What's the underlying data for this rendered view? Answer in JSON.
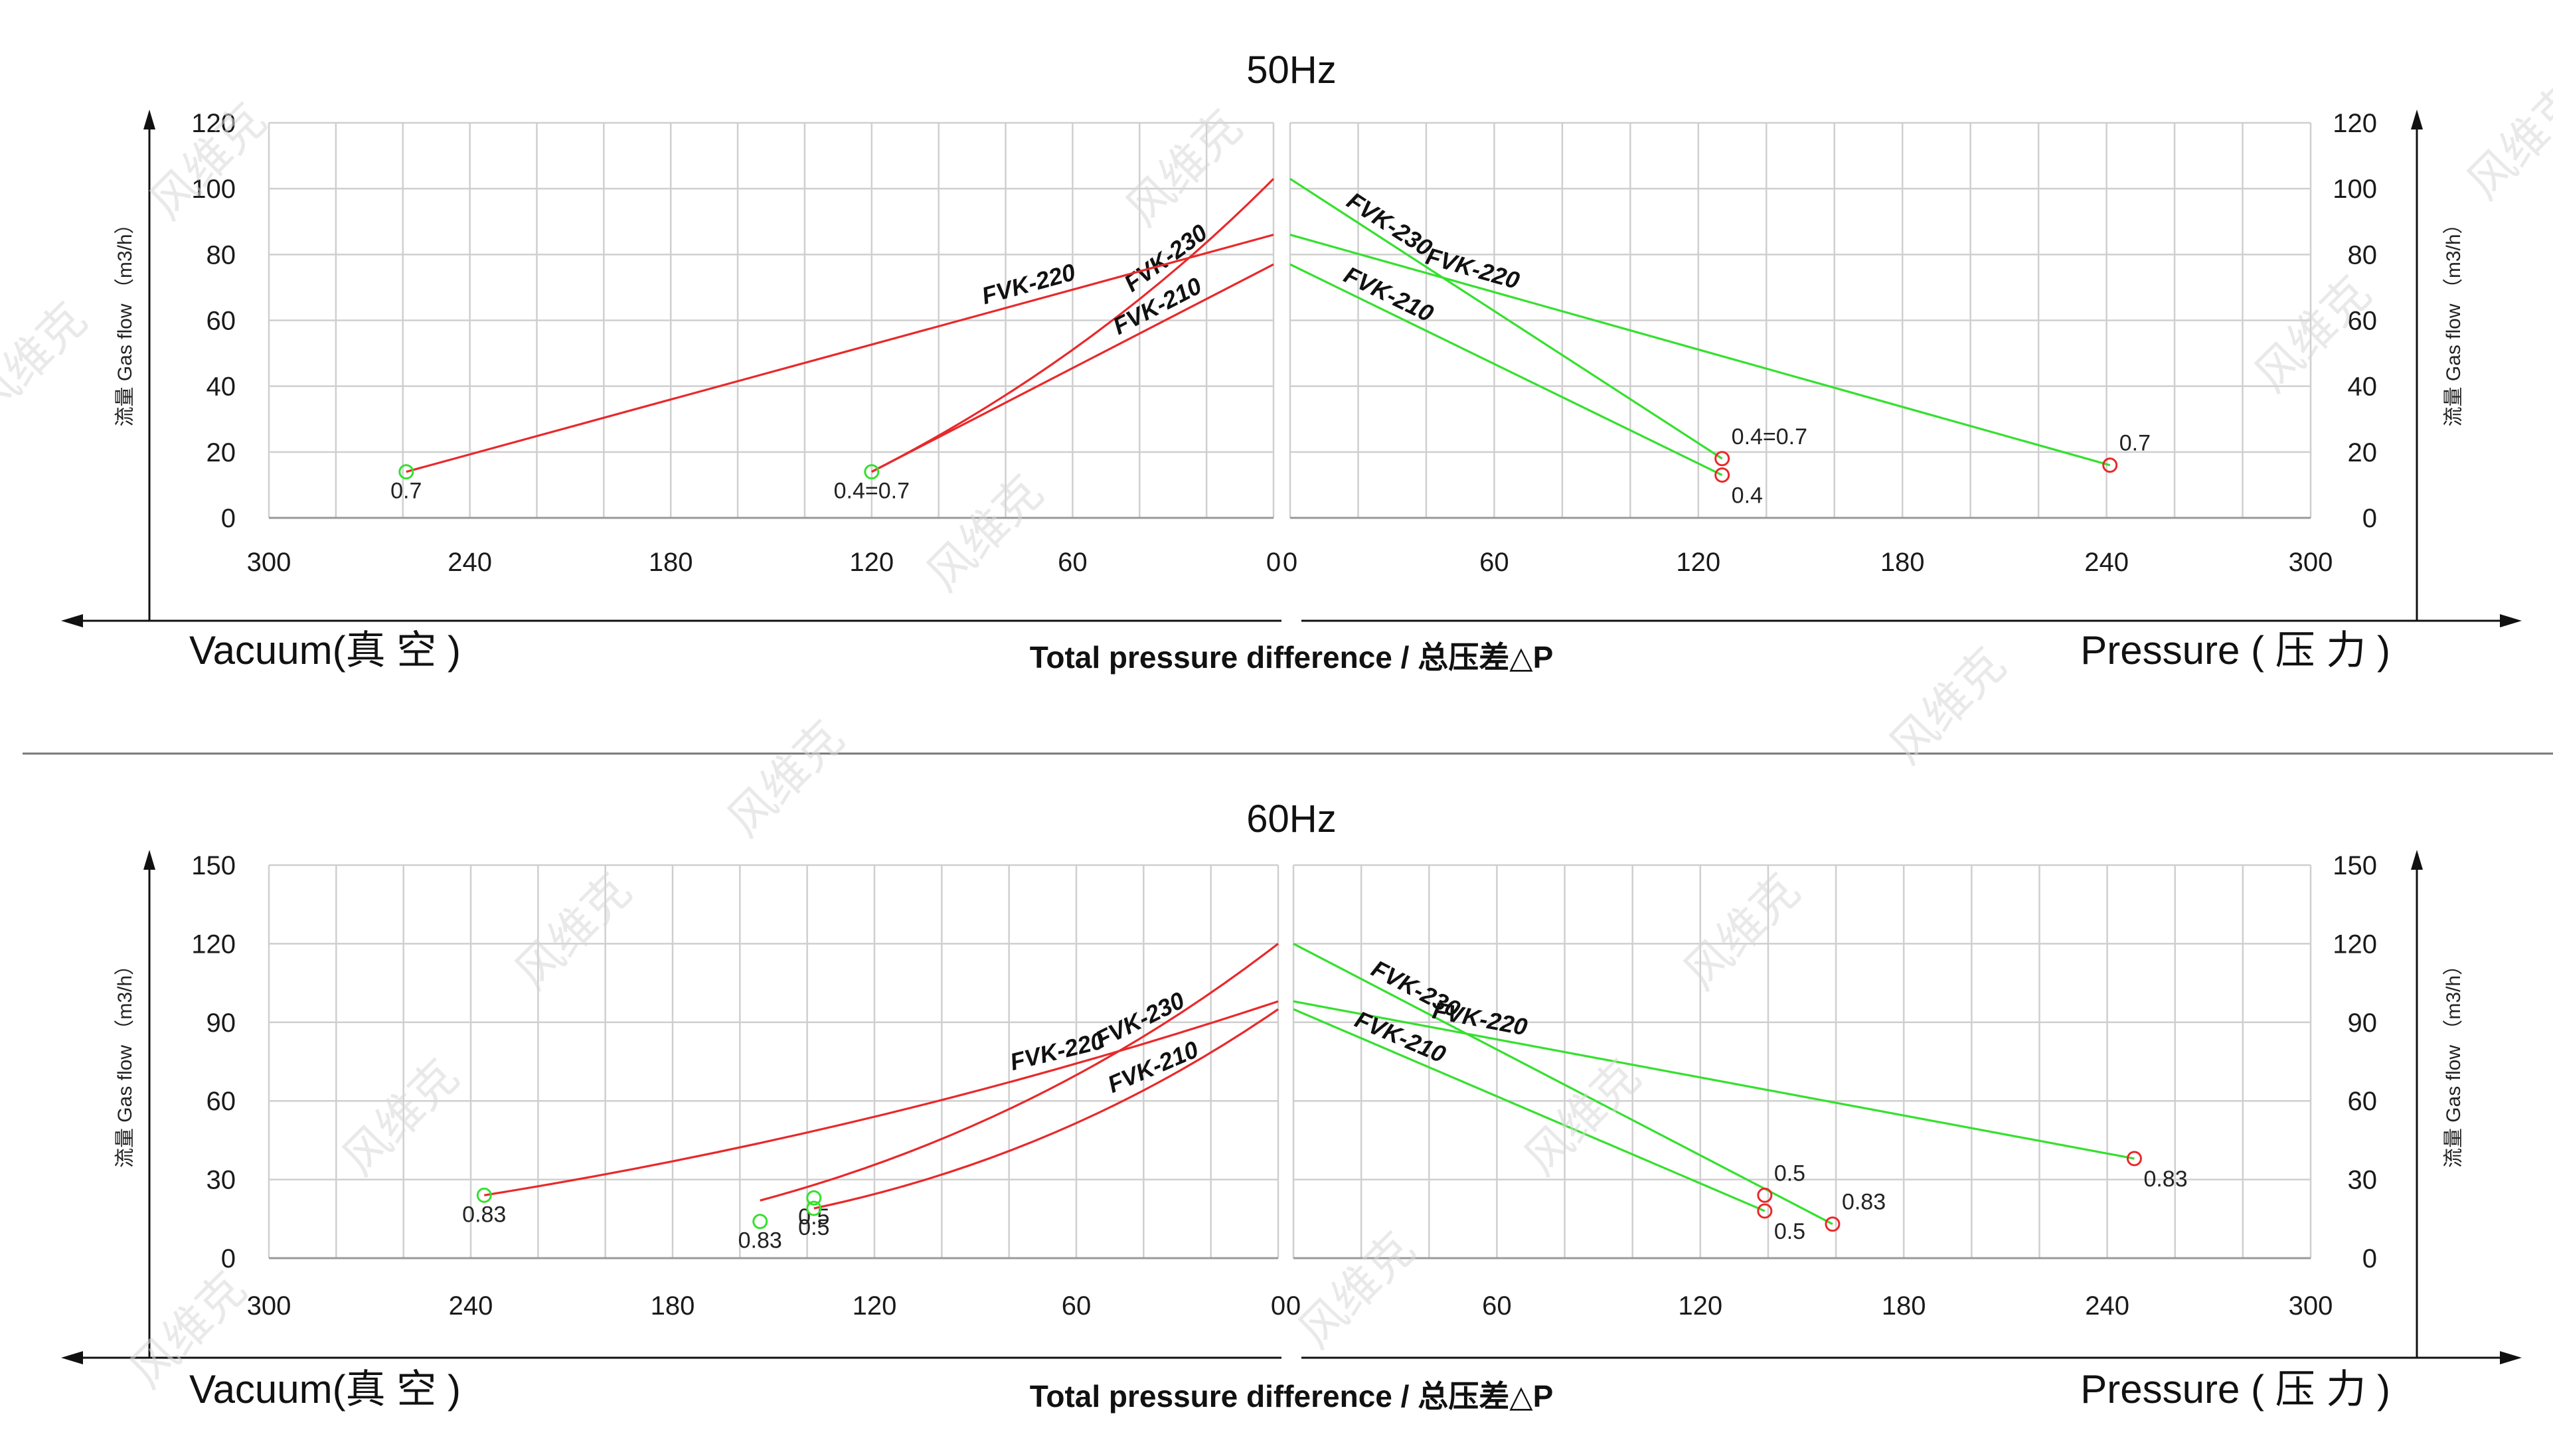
{
  "colors": {
    "vacuum": "#e8292b",
    "pressure": "#35e02e",
    "grid": "#cfcfcf",
    "axis": "#111111"
  },
  "watermark_text": "风维克",
  "chart_data": [
    {
      "type": "line",
      "title": "50Hz",
      "ylabel": "流量 Gas flow （m3/h）",
      "x_axis_label_left": "Vacuum(真 空 )",
      "x_axis_label_center": "Total pressure difference / 总压差△P",
      "x_axis_label_right": "Pressure ( 压 力 )",
      "ylim": [
        0,
        120
      ],
      "xlim": [
        0,
        300
      ],
      "y_ticks": [
        "0",
        "20",
        "40",
        "60",
        "80",
        "100",
        "120"
      ],
      "x_ticks": [
        "300",
        "240",
        "180",
        "120",
        "60",
        "0"
      ],
      "x_ticks_right": [
        "0",
        "60",
        "120",
        "180",
        "240",
        "300"
      ],
      "vacuum_series": [
        {
          "name": "FVK-230",
          "points": [
            [
              0,
              103
            ],
            [
              120,
              14
            ]
          ],
          "curve": 0.08,
          "label": "FVK-230"
        },
        {
          "name": "FVK-220",
          "points": [
            [
              0,
              86
            ],
            [
              259,
              14
            ]
          ],
          "curve": 0.0,
          "label": "FVK-220"
        },
        {
          "name": "FVK-210",
          "points": [
            [
              0,
              77
            ],
            [
              120,
              14
            ]
          ],
          "curve": 0.0,
          "label": "FVK-210"
        }
      ],
      "vacuum_markers": [
        {
          "x": 259,
          "y": 14,
          "label": "0.7"
        },
        {
          "x": 120,
          "y": 14,
          "label": "0.4=0.7"
        }
      ],
      "pressure_series": [
        {
          "name": "FVK-230",
          "points": [
            [
              0,
              103
            ],
            [
              127,
              18
            ]
          ],
          "curve": 0.0,
          "label": "FVK-230"
        },
        {
          "name": "FVK-220",
          "points": [
            [
              0,
              86
            ],
            [
              241,
              16
            ]
          ],
          "curve": 0.0,
          "label": "FVK-220"
        },
        {
          "name": "FVK-210",
          "points": [
            [
              0,
              77
            ],
            [
              127,
              13
            ]
          ],
          "curve": 0.0,
          "label": "FVK-210"
        }
      ],
      "pressure_markers": [
        {
          "x": 127,
          "y": 18,
          "label": "0.4=0.7"
        },
        {
          "x": 127,
          "y": 13,
          "label": "0.4"
        },
        {
          "x": 241,
          "y": 16,
          "label": "0.7"
        }
      ]
    },
    {
      "type": "line",
      "title": "60Hz",
      "ylabel": "流量 Gas flow （m3/h）",
      "x_axis_label_left": "Vacuum(真 空 )",
      "x_axis_label_center": "Total pressure difference / 总压差△P",
      "x_axis_label_right": "Pressure ( 压 力 )",
      "ylim": [
        0,
        150
      ],
      "xlim": [
        0,
        300
      ],
      "y_ticks": [
        "0",
        "30",
        "60",
        "90",
        "120",
        "150"
      ],
      "x_ticks": [
        "300",
        "240",
        "180",
        "120",
        "60",
        "0"
      ],
      "x_ticks_right": [
        "0",
        "60",
        "120",
        "180",
        "240",
        "300"
      ],
      "vacuum_series": [
        {
          "name": "FVK-230",
          "points": [
            [
              0,
              120
            ],
            [
              154,
              22
            ]
          ],
          "curve": 0.1,
          "label": "FVK-230"
        },
        {
          "name": "FVK-220",
          "points": [
            [
              0,
              98
            ],
            [
              236,
              24
            ]
          ],
          "curve": 0.04,
          "label": "FVK-220"
        },
        {
          "name": "FVK-210",
          "points": [
            [
              0,
              95
            ],
            [
              138,
              19
            ]
          ],
          "curve": 0.1,
          "label": "FVK-210"
        }
      ],
      "vacuum_markers": [
        {
          "x": 236,
          "y": 24,
          "label": "0.83"
        },
        {
          "x": 154,
          "y": 14,
          "label": "0.83"
        },
        {
          "x": 138,
          "y": 23,
          "label": "0.5"
        },
        {
          "x": 138,
          "y": 19,
          "label": "0.5"
        }
      ],
      "pressure_series": [
        {
          "name": "FVK-230",
          "points": [
            [
              0,
              120
            ],
            [
              159,
              13
            ]
          ],
          "curve": 0.0,
          "label": "FVK-230"
        },
        {
          "name": "FVK-220",
          "points": [
            [
              0,
              98
            ],
            [
              248,
              38
            ]
          ],
          "curve": 0.0,
          "label": "FVK-220"
        },
        {
          "name": "FVK-210",
          "points": [
            [
              0,
              95
            ],
            [
              139,
              18
            ]
          ],
          "curve": 0.0,
          "label": "FVK-210"
        }
      ],
      "pressure_markers": [
        {
          "x": 139,
          "y": 24,
          "label": "0.5"
        },
        {
          "x": 139,
          "y": 18,
          "label": "0.5"
        },
        {
          "x": 159,
          "y": 13,
          "label": "0.83"
        },
        {
          "x": 248,
          "y": 38,
          "label": "0.83"
        }
      ]
    }
  ]
}
